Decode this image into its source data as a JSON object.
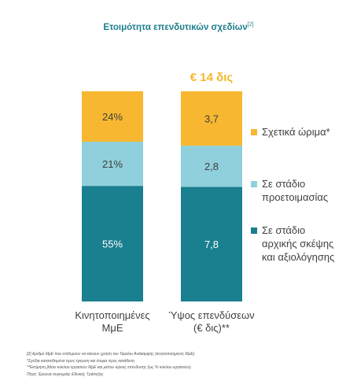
{
  "title": "Ετοιμότητα επενδυτικών σχεδίων",
  "title_ref": "[2]",
  "total_label": "€ 14 δις",
  "colors": {
    "title": "#1f7d8c",
    "total": "#f5b829",
    "axis_label": "#404040",
    "segment_label_light": "#404040",
    "segment_label_dark": "#ffffff"
  },
  "chart_data": {
    "type": "bar",
    "stacked": true,
    "categories": [
      "Κινητοποιημένες ΜμΕ",
      "Ύψος επενδύσεων (€ δις)**"
    ],
    "series": [
      {
        "name": "Σε στάδιο αρχικής σκέψης και αξιολόγησης",
        "color": "#1a7f8e",
        "values": [
          55,
          7.8
        ],
        "labels": [
          "55%",
          "7,8"
        ]
      },
      {
        "name": "Σε στάδιο προετοιμασίας",
        "color": "#8fd0dc",
        "values": [
          21,
          2.8
        ],
        "labels": [
          "21%",
          "2,8"
        ]
      },
      {
        "name": "Σχετικά ώριμα*",
        "color": "#f7b731",
        "values": [
          24,
          3.7
        ],
        "labels": [
          "24%",
          "3,7"
        ]
      }
    ],
    "legend": {
      "position": "right",
      "entries": [
        {
          "lines": [
            "Σχετικά ώριμα*"
          ],
          "color": "#f7b731"
        },
        {
          "lines": [
            "Σε στάδιο",
            "προετοιμασίας"
          ],
          "color": "#8fd0dc"
        },
        {
          "lines": [
            "Σε στάδιο",
            "αρχικής σκέψης",
            "και αξιολόγησης"
          ],
          "color": "#1a7f8e"
        }
      ]
    },
    "category_lines": [
      [
        "Κινητοποιημένες",
        "ΜμΕ"
      ],
      [
        "Ύψος επενδύσεων",
        "(€ δις)**"
      ]
    ]
  },
  "footnotes": [
    "[2] Αριθμό ΜμΕ που επιθυμούν να κάνουν χρήση του Ταμείου Ανάκαμψης (κινητοποιημένες ΜμΕ).",
    "*Σχέδια κατατεθειμένα προς έγκριση και έτοιμα προς κατάθεση",
    "**Εκτίμηση βάσει κύκλου εργασιών ΜμΕ και μέσου ύψους επένδυσης (ως % κύκλου εργασιών).",
    "Πηγή: Έρευνα συγκυρίας Εθνικής Τράπεζας"
  ]
}
